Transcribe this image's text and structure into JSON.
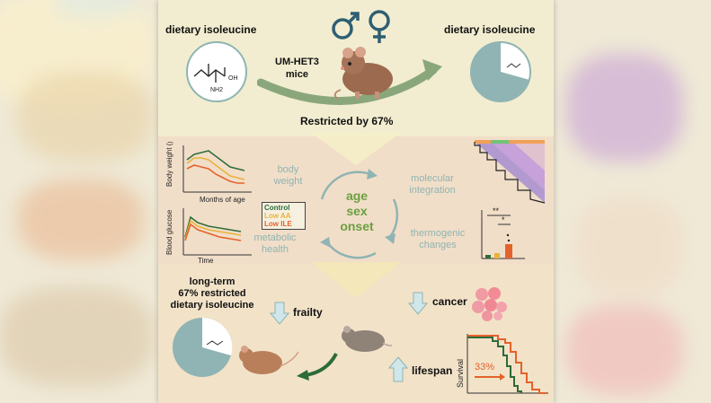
{
  "top": {
    "left_title": "dietary isoleucine",
    "right_title": "dietary isoleucine",
    "mice_label": "UM-HET3 mice",
    "mice_line1": "UM-HET3",
    "mice_line2": "mice",
    "restriction": "Restricted by 67%",
    "sex_symbols": "♂ ♀",
    "molecule": {
      "oh": "OH",
      "nh2": "NH2"
    }
  },
  "middle": {
    "weight_chart": {
      "ylabel": "Body weight (g)",
      "xlabel": "Months of age"
    },
    "glucose_chart": {
      "ylabel": "Blood glucose",
      "xlabel": "Time"
    },
    "legend": [
      "Control",
      "Low AA",
      "Low ILE"
    ],
    "cycle_labels": {
      "body_weight": [
        "body",
        "weight"
      ],
      "metabolic_health": [
        "metabolic",
        "health"
      ],
      "molecular_integration": [
        "molecular",
        "integration"
      ],
      "thermogenic_changes": [
        "thermogenic",
        "changes"
      ]
    },
    "core_terms": [
      "age",
      "sex",
      "onset"
    ],
    "stats": [
      "**",
      "*"
    ]
  },
  "bottom": {
    "long_term": [
      "long-term",
      "67% restricted",
      "dietary isoleucine"
    ],
    "frailty": "frailty",
    "cancer": "cancer",
    "lifespan": "lifespan",
    "survival_axis": "Survival",
    "survival_gain": "33%"
  },
  "colors": {
    "teal": "#8fb4b3",
    "green": "#6aa042",
    "orange": "#e4622b",
    "dark_green": "#2c6b3a",
    "control_line": "#2f6e3c",
    "low_aa_line": "#e8b23a",
    "low_ile_line": "#e4622b",
    "arrow_blue": "#cfe6ea"
  }
}
